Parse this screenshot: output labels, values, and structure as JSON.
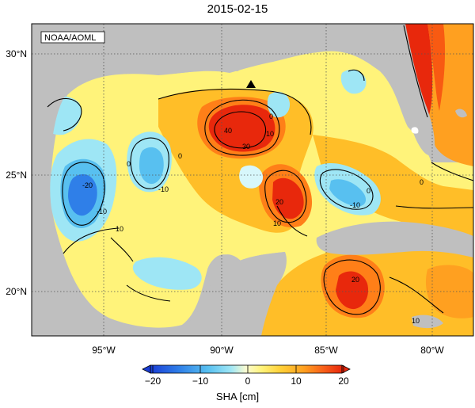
{
  "title": "2015-02-15",
  "badge": "NOAA/AOML",
  "lon_ticks": [
    "95°W",
    "90°W",
    "85°W",
    "80°W"
  ],
  "lat_ticks": [
    "30°N",
    "25°N",
    "20°N"
  ],
  "colorbar": {
    "ticks": [
      "−20",
      "−10",
      "0",
      "10",
      "20"
    ],
    "label": "SHA [cm]",
    "range": [
      -20,
      20
    ],
    "colors": [
      "#1a3ed6",
      "#2f7fe8",
      "#58c0f0",
      "#9ee6f5",
      "#d7f7fb",
      "#fbfbd0",
      "#fff37a",
      "#ffdc3c",
      "#ffbe28",
      "#ffa020",
      "#ff7f18",
      "#f85a12",
      "#e8280c"
    ]
  },
  "contour_labels": [
    {
      "text": "-20"
    },
    {
      "text": "-10"
    },
    {
      "text": "10"
    },
    {
      "text": "-10"
    },
    {
      "text": "0"
    },
    {
      "text": "0"
    },
    {
      "text": "40"
    },
    {
      "text": "30"
    },
    {
      "text": "10"
    },
    {
      "text": "0"
    },
    {
      "text": "20"
    },
    {
      "text": "10"
    },
    {
      "text": "-10"
    },
    {
      "text": "0"
    },
    {
      "text": "20"
    },
    {
      "text": "10"
    },
    {
      "text": "0"
    }
  ],
  "colors": {
    "land": "#bfbfbf",
    "frame": "#000000",
    "grid": "#555555"
  }
}
